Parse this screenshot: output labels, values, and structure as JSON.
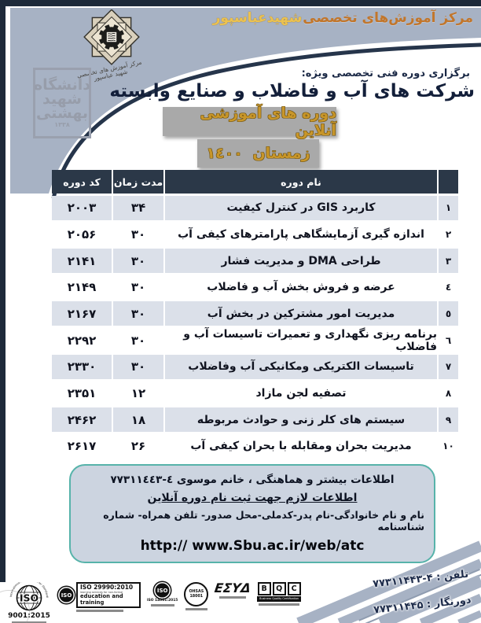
{
  "banner": {
    "center_name": "مرکز آموزش‌های تخصصی",
    "center_highlight": "شهیدعباسپور"
  },
  "emblem": {
    "signature": "مرکز آموزش های تخصصی شهید عباسپور"
  },
  "seal": {
    "line1": "دانشگاه",
    "line2": "شهید",
    "line3": "بهشتی",
    "year": "۱۳۳۸"
  },
  "header": {
    "kicker": "برگزاری دوره فنی تخصصی ویژه:",
    "title": "شرکت های آب و فاضلاب و صنایع وابسته",
    "badge_online": "دوره های آموزشی آنلاین",
    "badge_season": "زمستان  ١٤٠٠"
  },
  "table": {
    "headers": {
      "code": "کد دوره",
      "duration": "مدت زمان",
      "name": "نام دوره",
      "row": ""
    },
    "rows": [
      {
        "num": "۱",
        "name": "کاربرد GIS در کنترل کیفیت",
        "duration": "۳۴",
        "code": "۲۰۰۳"
      },
      {
        "num": "۲",
        "name": "اندازه گیری آزمایشگاهی پارامترهای کیفی آب",
        "duration": "۳۰",
        "code": "۲۰۵۶"
      },
      {
        "num": "۳",
        "name": "طراحی DMA و مدیریت فشار",
        "duration": "۳۰",
        "code": "۲۱۴۱"
      },
      {
        "num": "٤",
        "name": "عرضه و فروش بخش آب و فاضلاب",
        "duration": "۳۰",
        "code": "۲۱۴۹"
      },
      {
        "num": "٥",
        "name": "مدیریت امور مشترکین در بخش آب",
        "duration": "۳۰",
        "code": "۲۱۶۷"
      },
      {
        "num": "٦",
        "name": "برنامه ریزی نگهداری و تعمیرات تاسیسات آب و فاضلاب",
        "duration": "۳۰",
        "code": "۲۲۹۲"
      },
      {
        "num": "٧",
        "name": "تاسیسات الکتریکی ومکانیکی آب وفاضلاب",
        "duration": "۳۰",
        "code": "۲۳۳۰"
      },
      {
        "num": "٨",
        "name": "تصفیه لجن مازاد",
        "duration": "۱۲",
        "code": "۲۳۵۱"
      },
      {
        "num": "٩",
        "name": "سیستم های کلر زنی و حوادث مربوطه",
        "duration": "۱۸",
        "code": "۲۴۶۲"
      },
      {
        "num": "١٠",
        "name": "مدیریت بحران ومقابله با بحران کیفی آب",
        "duration": "۲۶",
        "code": "۲۶۱۷"
      }
    ]
  },
  "info_box": {
    "line1": "اطلاعات بیشتر و هماهنگی ، خانم موسوی      ٤-٧٧٣١١٤٤٣",
    "line2": "اطلاعات لازم جهت ثبت نام دوره آنلاین",
    "line3": "نام و نام خانوادگی-نام پدر-کدملی-محل صدور- تلفن همراه- شماره شناسنامه",
    "url": "http:// www.Sbu.ac.ir/web/atc"
  },
  "footer": {
    "phone": "تلفن : ۴-۷۷۳۱۱۴۴۳",
    "fax": "دورنگار : ۷۷۳۱۱۴۴۵",
    "logos": {
      "iso9001": {
        "iso": "ISO",
        "arc": "International Organization for Standardization",
        "num": "9001:2015"
      },
      "iso29990": {
        "iso": "ISO",
        "title": "ISO 29990:2010",
        "tiny": "learning services for non-formal",
        "sub": "education and training"
      },
      "iso14001": {
        "iso": "ISO",
        "num": "ISO 14001:2015"
      },
      "ohsas": {
        "top": "OHSAS",
        "num": "18001"
      },
      "esyd": {
        "text": "ΕΣΥΔ"
      },
      "bqc": {
        "b": "B",
        "q": "Q",
        "c": "C",
        "caption": "Business Quality Certification"
      }
    }
  },
  "colors": {
    "banner": "#a7b2c4",
    "navy_frame": "#1e2a3a",
    "table_header": "#2b3848",
    "row_light": "#dbe0e9",
    "gold": "#c8962a",
    "badge_gray": "#a9a9a9",
    "info_bg": "#ccd4e0",
    "teal_border": "#57b3aa"
  }
}
